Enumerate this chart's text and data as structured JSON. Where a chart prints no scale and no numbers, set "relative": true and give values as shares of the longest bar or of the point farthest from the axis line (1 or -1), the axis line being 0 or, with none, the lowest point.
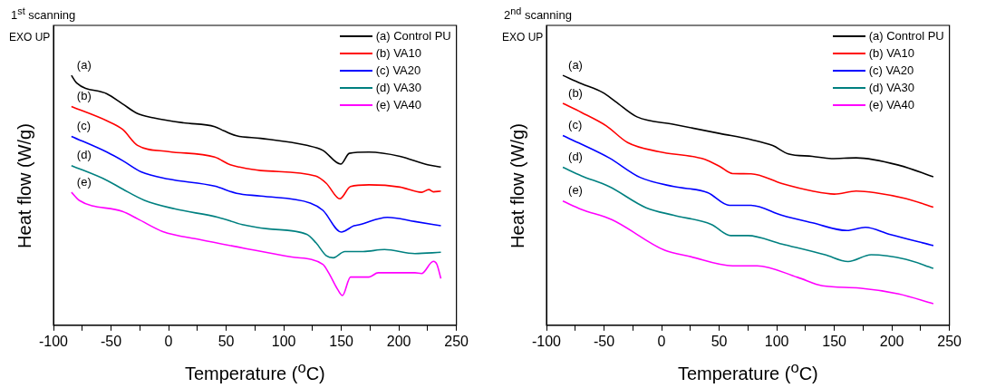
{
  "chart_data": [
    {
      "type": "line",
      "title": "1$^{st}$ scanning",
      "xlabel": "Temperature ($^{o}$C)",
      "ylabel": "Heat flow (W/g)",
      "relative": true,
      "legend": "top right",
      "tick_labels": "x",
      "xlim": [
        -100,
        250
      ],
      "xticks": [
        -100,
        {
          "value": -75,
          "label": null
        },
        -50,
        {
          "value": -25,
          "label": null
        },
        0,
        {
          "value": 25,
          "label": null
        },
        50,
        {
          "value": 75,
          "label": null
        },
        100,
        {
          "value": 125,
          "label": null
        },
        150,
        {
          "value": 175,
          "label": null
        },
        200,
        {
          "value": 225,
          "label": null
        },
        250
      ],
      "annotations": [
        "EXO UP",
        "(a)",
        "(b)",
        "(c)",
        "(d)",
        "(e)"
      ],
      "series": [
        {
          "name": "(a) Control PU",
          "color": "#000000",
          "x": [
            -84.4,
            -80,
            -53.6,
            -40,
            -27,
            -13,
            13,
            40,
            48,
            59,
            80,
            120,
            134,
            149.5,
            157,
            174,
            201,
            225,
            236.5
          ],
          "values": [
            1.0,
            0.97,
            0.926,
            0.886,
            0.847,
            0.83,
            0.81,
            0.795,
            0.778,
            0.758,
            0.748,
            0.72,
            0.7,
            0.645,
            0.688,
            0.693,
            0.676,
            0.642,
            0.633
          ]
        },
        {
          "name": "(b) VA10",
          "color": "#ff0000",
          "x": [
            -84.4,
            -53.6,
            -40,
            -27,
            0,
            40,
            53.6,
            61.6,
            80,
            128,
            137,
            148.7,
            158,
            174,
            201,
            219.7,
            226,
            230,
            236.5
          ],
          "values": [
            0.875,
            0.818,
            0.784,
            0.72,
            0.695,
            0.673,
            0.642,
            0.633,
            0.619,
            0.597,
            0.568,
            0.506,
            0.555,
            0.562,
            0.553,
            0.532,
            0.543,
            0.534,
            0.537
          ]
        },
        {
          "name": "(c) VA20",
          "color": "#0000ff",
          "x": [
            -84.4,
            -53.6,
            -40,
            -24,
            0,
            40,
            59,
            80,
            123,
            134,
            150,
            161,
            166,
            190,
            214,
            236.5
          ],
          "values": [
            0.756,
            0.693,
            0.659,
            0.614,
            0.585,
            0.557,
            0.528,
            0.517,
            0.489,
            0.46,
            0.373,
            0.398,
            0.403,
            0.432,
            0.415,
            0.398
          ]
        },
        {
          "name": "(d) VA30",
          "color": "#008080",
          "x": [
            -84.4,
            -53.6,
            -40,
            -21,
            5,
            43,
            64,
            86,
            120,
            128,
            137,
            143,
            153,
            169,
            187.5,
            214,
            236.5
          ],
          "values": [
            0.639,
            0.58,
            0.545,
            0.5,
            0.466,
            0.432,
            0.403,
            0.386,
            0.364,
            0.33,
            0.278,
            0.27,
            0.295,
            0.295,
            0.303,
            0.287,
            0.292
          ]
        },
        {
          "name": "(e) VA40",
          "color": "#ff00ff",
          "x": [
            -84.4,
            -77.7,
            -40,
            -27,
            -5,
            27,
            67,
            107,
            134,
            139,
            147,
            151,
            158,
            174,
            182,
            214,
            219.7,
            230,
            233,
            236.5
          ],
          "values": [
            0.532,
            0.5,
            0.455,
            0.426,
            0.375,
            0.343,
            0.307,
            0.273,
            0.244,
            0.21,
            0.142,
            0.119,
            0.193,
            0.193,
            0.21,
            0.21,
            0.207,
            0.256,
            0.244,
            0.187
          ]
        }
      ]
    },
    {
      "type": "line",
      "title": "2$^{nd}$ scanning",
      "xlabel": "Temperature ($^{o}$C)",
      "ylabel": "Heat flow (W/g)",
      "relative": true,
      "legend": "top right",
      "tick_labels": "x",
      "xlim": [
        -100,
        250
      ],
      "xticks": [
        -100,
        {
          "value": -75,
          "label": null
        },
        -50,
        {
          "value": -25,
          "label": null
        },
        0,
        {
          "value": 25,
          "label": null
        },
        50,
        {
          "value": 75,
          "label": null
        },
        100,
        {
          "value": 125,
          "label": null
        },
        150,
        {
          "value": 175,
          "label": null
        },
        200,
        {
          "value": 225,
          "label": null
        },
        250
      ],
      "annotations": [
        "EXO UP",
        "(a)",
        "(b)",
        "(c)",
        "(d)",
        "(e)"
      ],
      "series": [
        {
          "name": "(a) Control PU",
          "color": "#000000",
          "x": [
            -85.8,
            -69.7,
            -51,
            -40,
            -21.4,
            10.7,
            51,
            77.7,
            96.5,
            110,
            131,
            147.5,
            169,
            206.4,
            236
          ],
          "values": [
            1.0,
            0.967,
            0.931,
            0.895,
            0.834,
            0.804,
            0.767,
            0.743,
            0.719,
            0.686,
            0.676,
            0.667,
            0.67,
            0.64,
            0.594
          ]
        },
        {
          "name": "(b) VA10",
          "color": "#ff0000",
          "x": [
            -85.8,
            -69.7,
            -48,
            -29.5,
            -2.7,
            37.5,
            51,
            61.7,
            77.7,
            104.6,
            131,
            150,
            169,
            185,
            212,
            236
          ],
          "values": [
            0.888,
            0.852,
            0.798,
            0.731,
            0.695,
            0.664,
            0.634,
            0.607,
            0.606,
            0.567,
            0.537,
            0.525,
            0.537,
            0.531,
            0.507,
            0.473
          ]
        },
        {
          "name": "(c) VA20",
          "color": "#0000ff",
          "x": [
            -85.8,
            -69.7,
            -45.6,
            -18.8,
            10.7,
            40,
            59,
            77.7,
            104.6,
            131,
            161,
            177,
            198,
            236
          ],
          "values": [
            0.759,
            0.725,
            0.67,
            0.592,
            0.555,
            0.531,
            0.48,
            0.48,
            0.44,
            0.41,
            0.379,
            0.392,
            0.364,
            0.319
          ]
        },
        {
          "name": "(d) VA30",
          "color": "#008080",
          "x": [
            -85.8,
            -69.7,
            -45.6,
            -13.4,
            10.7,
            43,
            60,
            75,
            104.6,
            142,
            162,
            182,
            212,
            236
          ],
          "values": [
            0.632,
            0.598,
            0.555,
            0.47,
            0.44,
            0.404,
            0.359,
            0.359,
            0.325,
            0.282,
            0.255,
            0.282,
            0.264,
            0.228
          ]
        },
        {
          "name": "(e) VA40",
          "color": "#ff00ff",
          "x": [
            -85.8,
            -69.7,
            -42.9,
            2.7,
            24,
            61.7,
            83,
            118,
            139.7,
            171.6,
            206,
            236
          ],
          "values": [
            0.497,
            0.464,
            0.422,
            0.3,
            0.276,
            0.238,
            0.238,
            0.192,
            0.158,
            0.149,
            0.125,
            0.086
          ]
        }
      ]
    }
  ]
}
